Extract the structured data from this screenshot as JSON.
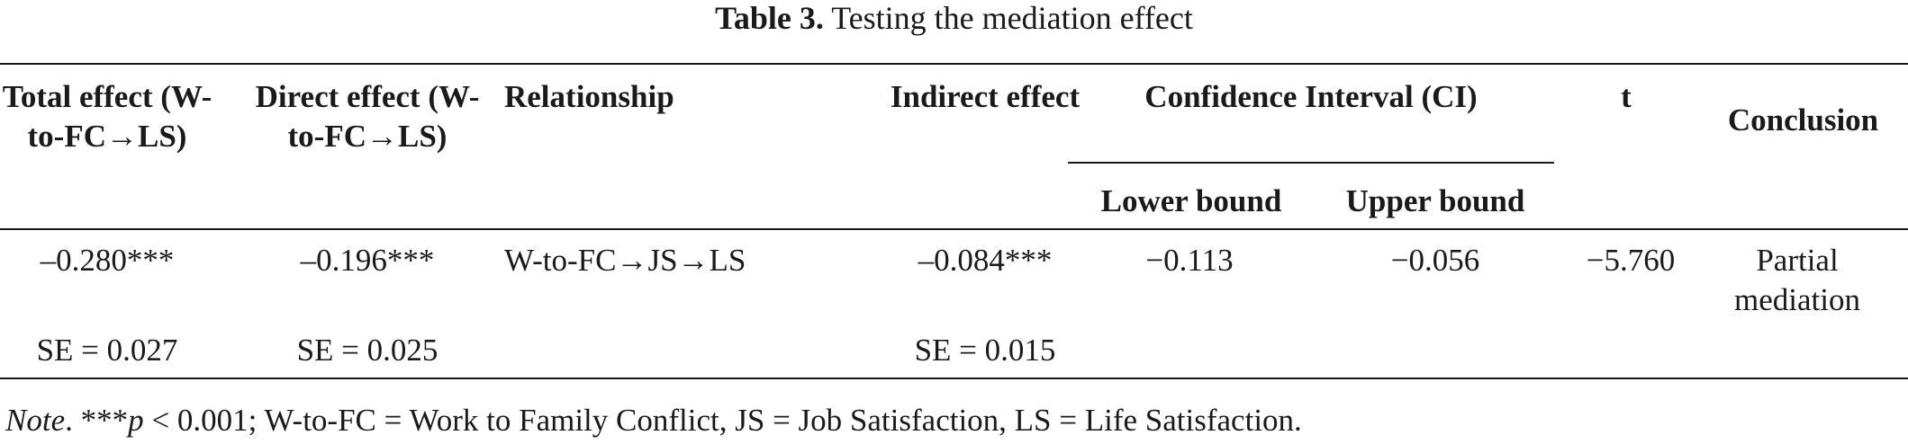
{
  "caption": {
    "label": "Table 3.",
    "title": "Testing the mediation effect"
  },
  "headers": {
    "total_effect": "Total effect (W-to-FC→LS)",
    "direct_effect": "Direct effect (W-to-FC→LS)",
    "relationship": "Relationship",
    "indirect_effect": "Indirect effect",
    "ci": "Confidence Interval (CI)",
    "lower_bound": "Lower bound",
    "upper_bound": "Upper bound",
    "t": "t",
    "conclusion": "Conclusion"
  },
  "row": {
    "total_effect": "–0.280***",
    "total_se": "SE = 0.027",
    "direct_effect": "–0.196***",
    "direct_se": "SE = 0.025",
    "relationship": "W-to-FC→JS→LS",
    "indirect_effect": "–0.084***",
    "indirect_se": "SE = 0.015",
    "lower_bound": "−0.113",
    "upper_bound": "−0.056",
    "t": "−5.760",
    "conclusion": "Partial mediation"
  },
  "note": {
    "label": "Note",
    "p_symbol": "p",
    "p_prefix": ". ***",
    "text": " < 0.001; W-to-FC = Work to Family Conflict, JS = Job Satisfaction, LS = Life Satisfaction."
  }
}
